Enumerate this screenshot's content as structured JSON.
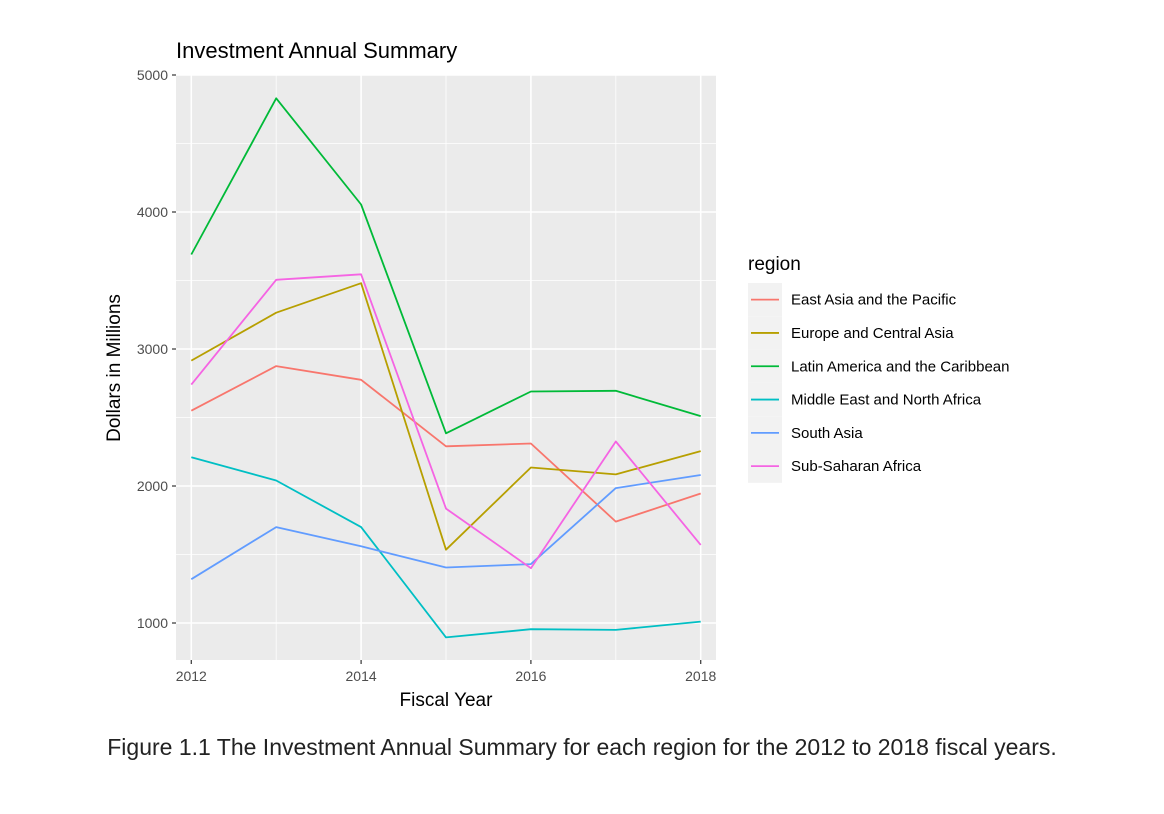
{
  "chart_data": {
    "type": "line",
    "title": "Investment Annual Summary",
    "xlabel": "Fiscal Year",
    "ylabel": "Dollars in Millions",
    "x": [
      2012,
      2013,
      2014,
      2015,
      2016,
      2017,
      2018
    ],
    "xticks": [
      2012,
      2014,
      2016,
      2018
    ],
    "xlim": [
      2011.82,
      2018.18
    ],
    "yticks": [
      1000,
      2000,
      3000,
      4000,
      5000
    ],
    "ylim": [
      730,
      5000
    ],
    "grid": true,
    "legend": {
      "title": "region",
      "position": "right"
    },
    "series": [
      {
        "name": "East Asia and the Pacific",
        "color": "#F8766D",
        "values": [
          2550,
          2875,
          2775,
          2290,
          2310,
          1740,
          1945
        ]
      },
      {
        "name": "Europe and Central Asia",
        "color": "#B79F00",
        "values": [
          2915,
          3265,
          3480,
          1535,
          2135,
          2085,
          2255
        ]
      },
      {
        "name": "Latin America and the Caribbean",
        "color": "#00BA38",
        "values": [
          3690,
          4830,
          4055,
          2385,
          2690,
          2695,
          2510
        ]
      },
      {
        "name": "Middle East and North Africa",
        "color": "#00BFC4",
        "values": [
          2210,
          2040,
          1700,
          895,
          955,
          950,
          1010
        ]
      },
      {
        "name": "South Asia",
        "color": "#619CFF",
        "values": [
          1320,
          1700,
          1560,
          1405,
          1430,
          1985,
          2080
        ]
      },
      {
        "name": "Sub-Saharan Africa",
        "color": "#F564E3",
        "values": [
          2740,
          3505,
          3545,
          1835,
          1400,
          2325,
          1570
        ]
      }
    ]
  },
  "caption": "Figure 1.1 The Investment Annual Summary for each region for the 2012 to 2018 fiscal years."
}
